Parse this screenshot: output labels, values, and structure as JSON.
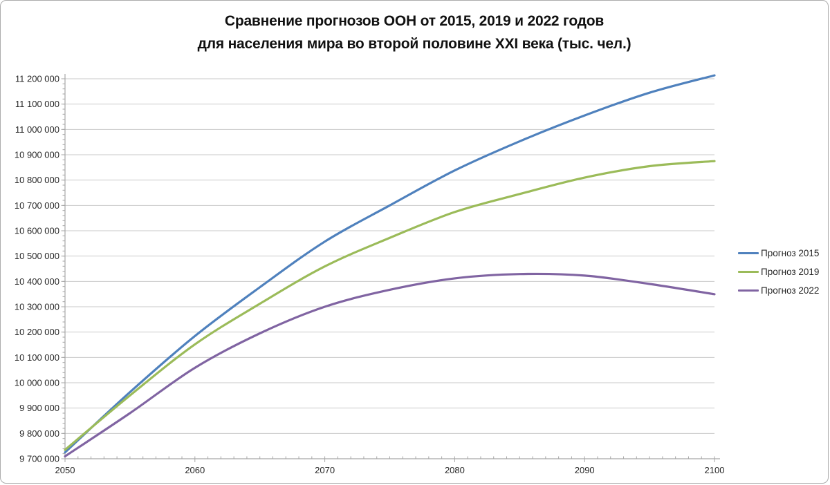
{
  "page": {
    "title_line1": "Сравнение прогнозов ООН от 2015, 2019 и 2022 годов",
    "title_line2": "для населения мира во второй половине XXI века (тыс. чел.)"
  },
  "chart_data": {
    "type": "line",
    "title": "Сравнение прогнозов ООН от 2015, 2019 и 2022 годов для населения мира во второй половине XXI века (тыс. чел.)",
    "units": "тыс. чел.",
    "x_years": [
      2050,
      2055,
      2060,
      2065,
      2070,
      2075,
      2080,
      2085,
      2090,
      2095,
      2100
    ],
    "series": [
      {
        "name": "Прогноз 2015",
        "color": "#4F81BD",
        "values": [
          9725148,
          9963000,
          10184290,
          10377000,
          10557259,
          10700000,
          10838000,
          10953000,
          11055000,
          11145000,
          11213317
        ]
      },
      {
        "name": "Прогноз 2019",
        "color": "#9BBB59",
        "values": [
          9735034,
          9950000,
          10151470,
          10312000,
          10459240,
          10572000,
          10673904,
          10745000,
          10809892,
          10855000,
          10874902
        ]
      },
      {
        "name": "Прогноз 2022",
        "color": "#8064A2",
        "values": [
          9709492,
          9880000,
          10059000,
          10195000,
          10300000,
          10367000,
          10412000,
          10429000,
          10423000,
          10390000,
          10349323
        ]
      }
    ],
    "ylim": [
      9700000,
      11200000
    ],
    "ytick_step": 100000,
    "ytick_labels": [
      "9 700 000",
      "9 800 000",
      "9 900 000",
      "10 000 000",
      "10 100 000",
      "10 200 000",
      "10 300 000",
      "10 400 000",
      "10 500 000",
      "10 600 000",
      "10 700 000",
      "10 800 000",
      "10 900 000",
      "11 000 000",
      "11 100 000",
      "11 200 000"
    ],
    "xticks": [
      2050,
      2060,
      2070,
      2080,
      2090,
      2100
    ],
    "legend": [
      "Прогноз 2015",
      "Прогноз 2019",
      "Прогноз 2022"
    ],
    "legend_position": "right",
    "grid": "horizontal-only",
    "colors": {
      "grid": "#C9C9C9",
      "axis": "#A6A6A6",
      "tick_text": "#262626",
      "title_text": "#111111",
      "frame_border": "#ABABAB",
      "background": "#FFFFFF"
    }
  }
}
